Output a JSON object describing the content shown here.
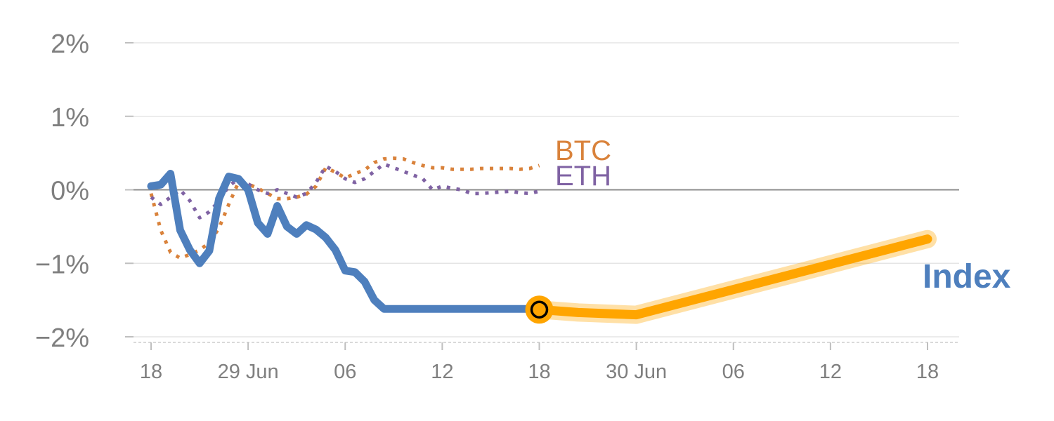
{
  "chart_data": {
    "type": "line",
    "title": "",
    "xlabel": "",
    "ylabel": "",
    "ylim": [
      -2,
      2
    ],
    "y_ticks": [
      2,
      1,
      0,
      -1,
      -2
    ],
    "y_tick_labels": [
      "2%",
      "1%",
      "0%",
      "−1%",
      "−2%"
    ],
    "x_ticks": [
      0,
      10,
      20,
      30,
      40,
      50,
      60,
      70,
      80
    ],
    "x_tick_labels": [
      "18",
      "29 Jun",
      "06",
      "12",
      "18",
      "30 Jun",
      "06",
      "12",
      "18"
    ],
    "grid": true,
    "zero_line": true,
    "series": [
      {
        "name": "BTC",
        "style": "dotted",
        "color": "#d9823b",
        "x": [
          0,
          1,
          2,
          3,
          4,
          5,
          6,
          7,
          8,
          9,
          10,
          11,
          12,
          13,
          14,
          15,
          16,
          17,
          18,
          19,
          20,
          21,
          22,
          23,
          24,
          25,
          26,
          27,
          28,
          29,
          30,
          31,
          32,
          33,
          34,
          35,
          36,
          37,
          38,
          39,
          40
        ],
        "values": [
          -0.05,
          -0.55,
          -0.85,
          -0.93,
          -0.88,
          -0.82,
          -0.72,
          -0.52,
          -0.2,
          0.1,
          0.08,
          0.02,
          -0.05,
          -0.12,
          -0.12,
          -0.1,
          -0.06,
          0.05,
          0.3,
          0.24,
          0.16,
          0.22,
          0.27,
          0.37,
          0.42,
          0.43,
          0.42,
          0.37,
          0.33,
          0.3,
          0.3,
          0.28,
          0.28,
          0.28,
          0.29,
          0.29,
          0.29,
          0.29,
          0.28,
          0.29,
          0.33
        ]
      },
      {
        "name": "ETH",
        "style": "dotted",
        "color": "#7f62a3",
        "x": [
          0,
          1,
          2,
          3,
          4,
          5,
          6,
          7,
          8,
          9,
          10,
          11,
          12,
          13,
          14,
          15,
          16,
          17,
          18,
          19,
          20,
          21,
          22,
          23,
          24,
          25,
          26,
          27,
          28,
          29,
          30,
          31,
          32,
          33,
          34,
          35,
          36,
          37,
          38,
          39,
          40
        ],
        "values": [
          -0.1,
          -0.2,
          -0.1,
          0.0,
          -0.15,
          -0.38,
          -0.3,
          -0.15,
          0.05,
          0.15,
          0.08,
          0.0,
          -0.05,
          0.0,
          -0.05,
          -0.1,
          -0.05,
          0.1,
          0.32,
          0.25,
          0.15,
          0.1,
          0.15,
          0.25,
          0.35,
          0.3,
          0.25,
          0.2,
          0.15,
          0.0,
          0.05,
          0.02,
          0.0,
          -0.05,
          -0.05,
          -0.04,
          -0.03,
          -0.02,
          -0.04,
          -0.05,
          -0.02
        ]
      },
      {
        "name": "Index",
        "style": "solid",
        "color": "#4e7fbd",
        "x": [
          0,
          1,
          2,
          3,
          4,
          5,
          6,
          7,
          8,
          9,
          10,
          11,
          12,
          13,
          14,
          15,
          16,
          17,
          18,
          19,
          20,
          21,
          22,
          23,
          24,
          25,
          26,
          27,
          28,
          29,
          30,
          31,
          32,
          33,
          34,
          35,
          36,
          37,
          38,
          39,
          40
        ],
        "values": [
          0.05,
          0.07,
          0.22,
          -0.55,
          -0.82,
          -1.0,
          -0.83,
          -0.12,
          0.18,
          0.15,
          0.0,
          -0.45,
          -0.6,
          -0.22,
          -0.5,
          -0.6,
          -0.48,
          -0.54,
          -0.65,
          -0.82,
          -1.1,
          -1.12,
          -1.25,
          -1.5,
          -1.62,
          -1.62,
          -1.62,
          -1.62,
          -1.62,
          -1.62,
          -1.62,
          -1.62,
          -1.62,
          -1.62,
          -1.62,
          -1.62,
          -1.62,
          -1.62,
          -1.62,
          -1.62,
          -1.62
        ]
      },
      {
        "name": "Index",
        "style": "projection",
        "color": "#ffa500",
        "x": [
          40,
          44,
          50,
          80
        ],
        "values": [
          -1.63,
          -1.67,
          -1.7,
          -0.67
        ]
      }
    ],
    "marker": {
      "x": 40,
      "value": -1.63
    },
    "labels": {
      "btc": "BTC",
      "eth": "ETH",
      "index": "Index"
    },
    "colors": {
      "btc": "#d9823b",
      "eth": "#7f62a3",
      "index": "#4e7fbd",
      "projection": "#ffa500",
      "axis": "#7f7f7f",
      "grid": "#e5e5e5"
    }
  }
}
